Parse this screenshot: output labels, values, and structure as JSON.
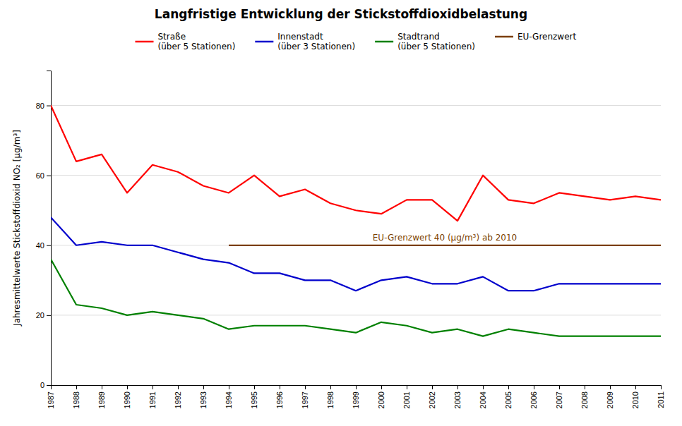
{
  "chart_data": {
    "type": "line",
    "title": "Langfristige Entwicklung der Stickstoffdioxidbelastung",
    "ylabel": "Jahresmittelwerte Stickstoffdioxid NO₂ [µg/m³]",
    "x": [
      1987,
      1988,
      1989,
      1990,
      1991,
      1992,
      1993,
      1994,
      1995,
      1996,
      1997,
      1998,
      1999,
      2000,
      2001,
      2002,
      2003,
      2004,
      2005,
      2006,
      2007,
      2008,
      2009,
      2010,
      2011
    ],
    "series": [
      {
        "name": "Straße\n(über 5 Stationen)",
        "color": "#FF0000",
        "values": [
          80,
          64,
          66,
          55,
          63,
          61,
          57,
          55,
          60,
          54,
          56,
          52,
          50,
          49,
          53,
          53,
          47,
          60,
          53,
          52,
          55,
          54,
          53,
          54,
          53
        ]
      },
      {
        "name": "Innenstadt\n(über 3 Stationen)",
        "color": "#0000CC",
        "values": [
          48,
          40,
          41,
          40,
          40,
          38,
          36,
          35,
          32,
          32,
          30,
          30,
          27,
          30,
          31,
          29,
          29,
          31,
          27,
          27,
          29,
          29,
          29,
          29,
          29
        ]
      },
      {
        "name": "Stadtrand\n(über 5 Stationen)",
        "color": "#008000",
        "values": [
          36,
          23,
          22,
          20,
          21,
          20,
          19,
          16,
          17,
          17,
          17,
          16,
          15,
          18,
          17,
          15,
          16,
          14,
          16,
          15,
          14,
          14,
          14,
          14,
          14
        ]
      },
      {
        "name": "EU-Grenzwert",
        "color": "#7B3F00",
        "values": [
          null,
          null,
          null,
          null,
          null,
          null,
          null,
          40,
          40,
          40,
          40,
          40,
          40,
          40,
          40,
          40,
          40,
          40,
          40,
          40,
          40,
          40,
          40,
          40,
          40
        ]
      }
    ],
    "annotation": "EU-Grenzwert 40 (µg/m³) ab 2010",
    "xlim": [
      1987,
      2011
    ],
    "xticks": [
      1987,
      1988,
      1989,
      1990,
      1991,
      1992,
      1993,
      1994,
      1995,
      1996,
      1997,
      1998,
      1999,
      2000,
      2001,
      2002,
      2003,
      2004,
      2005,
      2006,
      2007,
      2008,
      2009,
      2010,
      2011
    ],
    "ylim": [
      0,
      90
    ],
    "yticks": [
      0,
      20,
      40,
      60,
      80
    ],
    "grid": "y",
    "legend": "top"
  }
}
